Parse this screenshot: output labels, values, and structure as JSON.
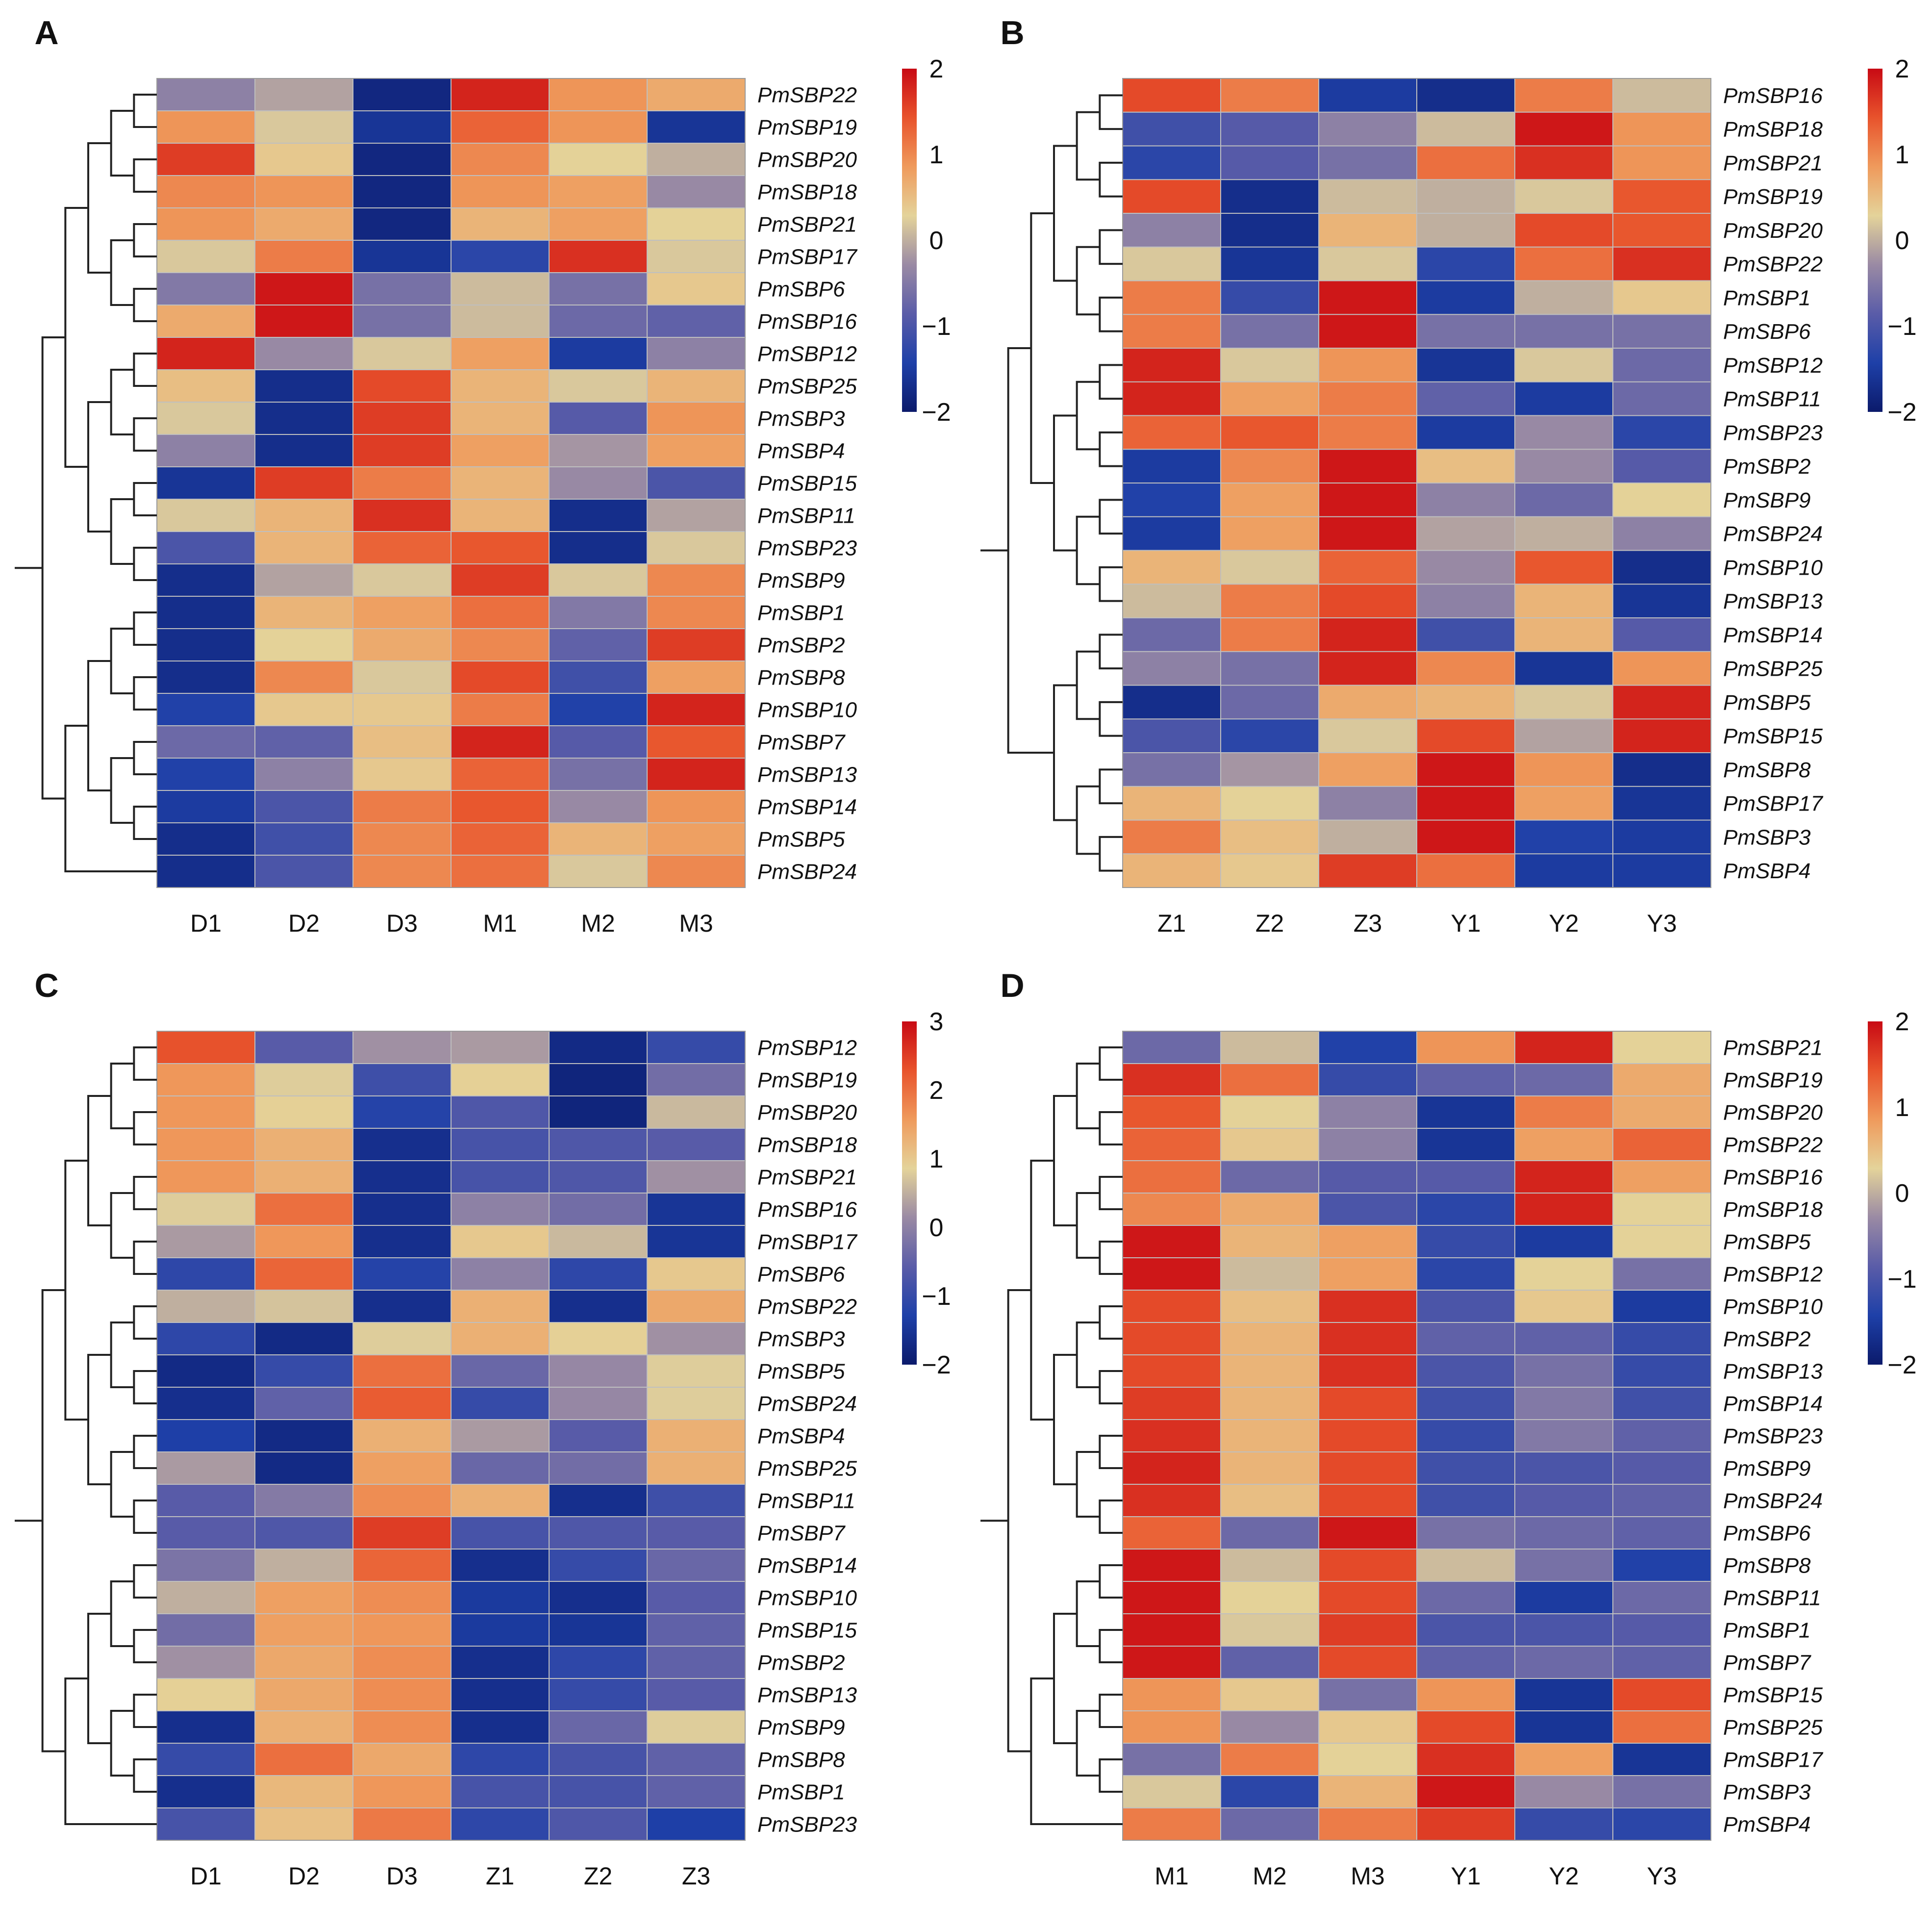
{
  "chart_data": [
    {
      "panel": "A",
      "type": "heatmap",
      "columns": [
        "D1",
        "D2",
        "D3",
        "M1",
        "M2",
        "M3"
      ],
      "rows": [
        "PmSBP22",
        "PmSBP19",
        "PmSBP20",
        "PmSBP18",
        "PmSBP21",
        "PmSBP17",
        "PmSBP6",
        "PmSBP16",
        "PmSBP12",
        "PmSBP25",
        "PmSBP3",
        "PmSBP4",
        "PmSBP15",
        "PmSBP11",
        "PmSBP23",
        "PmSBP9",
        "PmSBP1",
        "PmSBP2",
        "PmSBP8",
        "PmSBP10",
        "PmSBP7",
        "PmSBP13",
        "PmSBP14",
        "PmSBP5",
        "PmSBP24"
      ],
      "values": [
        [
          -0.4,
          -0.1,
          -1.8,
          1.8,
          0.9,
          0.7
        ],
        [
          0.9,
          0.2,
          -1.6,
          1.3,
          0.9,
          -1.6
        ],
        [
          1.6,
          0.4,
          -1.8,
          1.0,
          0.3,
          0.0
        ],
        [
          1.0,
          0.9,
          -1.8,
          0.9,
          0.8,
          -0.3
        ],
        [
          0.9,
          0.7,
          -1.8,
          0.6,
          0.8,
          0.3
        ],
        [
          0.2,
          1.1,
          -1.6,
          -1.3,
          1.7,
          0.2
        ],
        [
          -0.5,
          1.9,
          -0.6,
          0.1,
          -0.6,
          0.4
        ],
        [
          0.7,
          1.9,
          -0.6,
          0.1,
          -0.7,
          -0.8
        ],
        [
          1.8,
          -0.3,
          0.2,
          0.8,
          -1.5,
          -0.4
        ],
        [
          0.5,
          -1.7,
          1.5,
          0.6,
          0.2,
          0.6
        ],
        [
          0.2,
          -1.7,
          1.6,
          0.6,
          -0.9,
          0.9
        ],
        [
          -0.4,
          -1.7,
          1.6,
          0.8,
          -0.2,
          0.8
        ],
        [
          -1.6,
          1.6,
          1.1,
          0.6,
          -0.3,
          -1.0
        ],
        [
          0.2,
          0.6,
          1.7,
          0.6,
          -1.7,
          -0.1
        ],
        [
          -1.0,
          0.6,
          1.3,
          1.4,
          -1.7,
          0.2
        ],
        [
          -1.7,
          -0.1,
          0.2,
          1.6,
          0.2,
          1.0
        ],
        [
          -1.7,
          0.6,
          0.8,
          1.2,
          -0.5,
          1.0
        ],
        [
          -1.7,
          0.3,
          0.7,
          1.0,
          -0.8,
          1.6
        ],
        [
          -1.7,
          1.0,
          0.2,
          1.5,
          -1.1,
          0.8
        ],
        [
          -1.4,
          0.4,
          0.4,
          1.1,
          -1.4,
          1.8
        ],
        [
          -0.7,
          -0.8,
          0.5,
          1.8,
          -0.9,
          1.4
        ],
        [
          -1.4,
          -0.4,
          0.4,
          1.3,
          -0.6,
          1.8
        ],
        [
          -1.5,
          -1.0,
          1.1,
          1.4,
          -0.3,
          0.9
        ],
        [
          -1.7,
          -1.1,
          1.0,
          1.3,
          0.6,
          0.8
        ],
        [
          -1.7,
          -1.0,
          1.0,
          1.2,
          0.2,
          1.0
        ]
      ],
      "scale": {
        "min": -2,
        "max": 2,
        "ticks": [
          2,
          1,
          0,
          -1,
          -2
        ]
      }
    },
    {
      "panel": "B",
      "type": "heatmap",
      "columns": [
        "Z1",
        "Z2",
        "Z3",
        "Y1",
        "Y2",
        "Y3"
      ],
      "rows": [
        "PmSBP16",
        "PmSBP18",
        "PmSBP21",
        "PmSBP19",
        "PmSBP20",
        "PmSBP22",
        "PmSBP1",
        "PmSBP6",
        "PmSBP12",
        "PmSBP11",
        "PmSBP23",
        "PmSBP2",
        "PmSBP9",
        "PmSBP24",
        "PmSBP10",
        "PmSBP13",
        "PmSBP14",
        "PmSBP25",
        "PmSBP5",
        "PmSBP15",
        "PmSBP8",
        "PmSBP17",
        "PmSBP3",
        "PmSBP4"
      ],
      "values": [
        [
          1.5,
          1.1,
          -1.5,
          -1.7,
          1.1,
          0.1
        ],
        [
          -1.1,
          -0.9,
          -0.4,
          0.1,
          1.9,
          0.9
        ],
        [
          -1.3,
          -0.9,
          -0.6,
          1.2,
          1.7,
          0.9
        ],
        [
          1.5,
          -1.7,
          0.1,
          0.0,
          0.2,
          1.4
        ],
        [
          -0.4,
          -1.7,
          0.6,
          0.0,
          1.5,
          1.4
        ],
        [
          0.2,
          -1.6,
          0.2,
          -1.3,
          1.2,
          1.7
        ],
        [
          1.1,
          -1.2,
          1.9,
          -1.5,
          0.0,
          0.4
        ],
        [
          1.1,
          -0.6,
          1.9,
          -0.6,
          -0.6,
          -0.6
        ],
        [
          1.8,
          0.2,
          0.9,
          -1.6,
          0.2,
          -0.7
        ],
        [
          1.8,
          0.8,
          1.1,
          -0.8,
          -1.5,
          -0.7
        ],
        [
          1.3,
          1.4,
          1.1,
          -1.5,
          -0.3,
          -1.3
        ],
        [
          -1.5,
          1.0,
          1.9,
          0.5,
          -0.3,
          -0.9
        ],
        [
          -1.4,
          0.8,
          1.9,
          -0.4,
          -0.7,
          0.3
        ],
        [
          -1.5,
          0.8,
          1.9,
          -0.1,
          0.0,
          -0.4
        ],
        [
          0.6,
          0.2,
          1.3,
          -0.3,
          1.4,
          -1.7
        ],
        [
          0.1,
          1.1,
          1.5,
          -0.4,
          0.6,
          -1.6
        ],
        [
          -0.7,
          1.1,
          1.8,
          -1.1,
          0.6,
          -0.9
        ],
        [
          -0.4,
          -0.6,
          1.8,
          1.0,
          -1.6,
          0.9
        ],
        [
          -1.7,
          -0.7,
          0.7,
          0.6,
          0.2,
          1.8
        ],
        [
          -1.0,
          -1.3,
          0.2,
          1.5,
          -0.1,
          1.8
        ],
        [
          -0.6,
          -0.2,
          0.8,
          1.9,
          0.9,
          -1.7
        ],
        [
          0.6,
          0.3,
          -0.4,
          1.9,
          0.8,
          -1.6
        ],
        [
          1.1,
          0.5,
          0.0,
          1.9,
          -1.4,
          -1.5
        ],
        [
          0.6,
          0.4,
          1.6,
          1.2,
          -1.5,
          -1.5
        ]
      ],
      "scale": {
        "min": -2,
        "max": 2,
        "ticks": [
          2,
          1,
          0,
          -1,
          -2
        ]
      }
    },
    {
      "panel": "C",
      "type": "heatmap",
      "columns": [
        "D1",
        "D2",
        "D3",
        "Z1",
        "Z2",
        "Z3"
      ],
      "rows": [
        "PmSBP12",
        "PmSBP19",
        "PmSBP20",
        "PmSBP18",
        "PmSBP21",
        "PmSBP16",
        "PmSBP17",
        "PmSBP6",
        "PmSBP22",
        "PmSBP3",
        "PmSBP5",
        "PmSBP24",
        "PmSBP4",
        "PmSBP25",
        "PmSBP11",
        "PmSBP7",
        "PmSBP14",
        "PmSBP10",
        "PmSBP15",
        "PmSBP2",
        "PmSBP13",
        "PmSBP9",
        "PmSBP8",
        "PmSBP1",
        "PmSBP23"
      ],
      "values": [
        [
          2.3,
          -0.6,
          0.2,
          0.3,
          -1.7,
          -1.0
        ],
        [
          1.6,
          0.8,
          -0.9,
          0.9,
          -1.8,
          -0.3
        ],
        [
          1.6,
          0.9,
          -1.2,
          -0.7,
          -1.8,
          0.6
        ],
        [
          1.6,
          1.3,
          -1.6,
          -0.8,
          -0.7,
          -0.6
        ],
        [
          1.6,
          1.3,
          -1.6,
          -0.8,
          -0.7,
          0.2
        ],
        [
          0.8,
          2.0,
          -1.6,
          0.0,
          -0.3,
          -1.5
        ],
        [
          0.3,
          1.6,
          -1.6,
          1.0,
          0.6,
          -1.5
        ],
        [
          -1.1,
          2.1,
          -1.2,
          0.0,
          -1.1,
          1.0
        ],
        [
          0.5,
          0.7,
          -1.6,
          1.3,
          -1.6,
          1.4
        ],
        [
          -1.1,
          -1.7,
          0.8,
          1.3,
          0.9,
          0.2
        ],
        [
          -1.7,
          -1.0,
          2.0,
          -0.4,
          0.1,
          0.8
        ],
        [
          -1.6,
          -0.5,
          2.2,
          -1.0,
          0.1,
          0.8
        ],
        [
          -1.3,
          -1.7,
          1.3,
          0.3,
          -0.6,
          1.3
        ],
        [
          0.3,
          -1.7,
          1.5,
          -0.4,
          -0.3,
          1.3
        ],
        [
          -0.6,
          -0.1,
          1.7,
          1.3,
          -1.6,
          -0.9
        ],
        [
          -0.6,
          -0.7,
          2.5,
          -0.8,
          -0.7,
          -0.6
        ],
        [
          -0.2,
          0.5,
          2.1,
          -1.6,
          -1.0,
          -0.4
        ],
        [
          0.5,
          1.5,
          1.7,
          -1.4,
          -1.6,
          -0.6
        ],
        [
          -0.3,
          1.5,
          1.6,
          -1.4,
          -1.5,
          -0.5
        ],
        [
          0.2,
          1.4,
          1.7,
          -1.6,
          -1.1,
          -0.5
        ],
        [
          0.9,
          1.4,
          1.7,
          -1.6,
          -1.0,
          -0.6
        ],
        [
          -1.6,
          1.3,
          1.7,
          -1.6,
          -0.4,
          0.8
        ],
        [
          -1.0,
          2.0,
          1.4,
          -1.1,
          -0.8,
          -0.5
        ],
        [
          -1.6,
          1.2,
          1.6,
          -0.8,
          -0.8,
          -0.5
        ],
        [
          -0.8,
          1.1,
          1.9,
          -1.1,
          -0.7,
          -1.3
        ]
      ],
      "scale": {
        "min": -2,
        "max": 3,
        "ticks": [
          3,
          2,
          1,
          0,
          -1,
          -2
        ]
      }
    },
    {
      "panel": "D",
      "type": "heatmap",
      "columns": [
        "M1",
        "M2",
        "M3",
        "Y1",
        "Y2",
        "Y3"
      ],
      "rows": [
        "PmSBP21",
        "PmSBP19",
        "PmSBP20",
        "PmSBP22",
        "PmSBP16",
        "PmSBP18",
        "PmSBP5",
        "PmSBP12",
        "PmSBP10",
        "PmSBP2",
        "PmSBP13",
        "PmSBP14",
        "PmSBP23",
        "PmSBP9",
        "PmSBP24",
        "PmSBP6",
        "PmSBP8",
        "PmSBP11",
        "PmSBP1",
        "PmSBP7",
        "PmSBP15",
        "PmSBP25",
        "PmSBP17",
        "PmSBP3",
        "PmSBP4"
      ],
      "values": [
        [
          -0.7,
          0.1,
          -1.4,
          0.9,
          1.8,
          0.3
        ],
        [
          1.7,
          1.2,
          -1.2,
          -0.8,
          -0.7,
          0.7
        ],
        [
          1.4,
          0.3,
          -0.4,
          -1.6,
          1.1,
          0.7
        ],
        [
          1.3,
          0.4,
          -0.4,
          -1.6,
          0.8,
          1.3
        ],
        [
          1.2,
          -0.7,
          -0.9,
          -0.9,
          1.8,
          0.8
        ],
        [
          1.0,
          0.7,
          -1.0,
          -1.3,
          1.8,
          0.3
        ],
        [
          1.9,
          0.6,
          0.8,
          -1.2,
          -1.5,
          0.3
        ],
        [
          1.9,
          0.1,
          0.8,
          -1.3,
          0.3,
          -0.6
        ],
        [
          1.5,
          0.5,
          1.7,
          -1.0,
          0.4,
          -1.5
        ],
        [
          1.5,
          0.6,
          1.7,
          -0.8,
          -0.8,
          -1.2
        ],
        [
          1.5,
          0.6,
          1.7,
          -1.0,
          -0.6,
          -1.2
        ],
        [
          1.6,
          0.6,
          1.5,
          -1.1,
          -0.5,
          -1.1
        ],
        [
          1.7,
          0.6,
          1.5,
          -1.2,
          -0.5,
          -0.8
        ],
        [
          1.8,
          0.6,
          1.5,
          -1.1,
          -1.0,
          -0.9
        ],
        [
          1.7,
          0.5,
          1.5,
          -1.1,
          -0.9,
          -0.8
        ],
        [
          1.3,
          -0.7,
          1.9,
          -0.6,
          -0.7,
          -0.8
        ],
        [
          1.9,
          0.1,
          1.5,
          0.1,
          -0.6,
          -1.4
        ],
        [
          1.9,
          0.3,
          1.5,
          -0.7,
          -1.5,
          -0.7
        ],
        [
          1.9,
          0.2,
          1.6,
          -1.0,
          -1.0,
          -0.9
        ],
        [
          1.9,
          -0.8,
          1.5,
          -0.8,
          -0.7,
          -0.8
        ],
        [
          0.9,
          0.4,
          -0.6,
          0.9,
          -1.6,
          1.5
        ],
        [
          0.9,
          -0.3,
          0.4,
          1.5,
          -1.6,
          1.2
        ],
        [
          -0.6,
          1.1,
          0.3,
          1.7,
          0.8,
          -1.6
        ],
        [
          0.2,
          -1.3,
          0.6,
          1.9,
          -0.3,
          -0.6
        ],
        [
          1.1,
          -0.7,
          1.1,
          1.6,
          -1.2,
          -1.3
        ]
      ],
      "scale": {
        "min": -2,
        "max": 2,
        "ticks": [
          2,
          1,
          0,
          -1,
          -2
        ]
      }
    }
  ],
  "colormap": [
    "#0b1a6b",
    "#1e40a8",
    "#5a5ca8",
    "#9a8aa4",
    "#e4d39a",
    "#ef9a5c",
    "#e8532c",
    "#c80a14"
  ]
}
